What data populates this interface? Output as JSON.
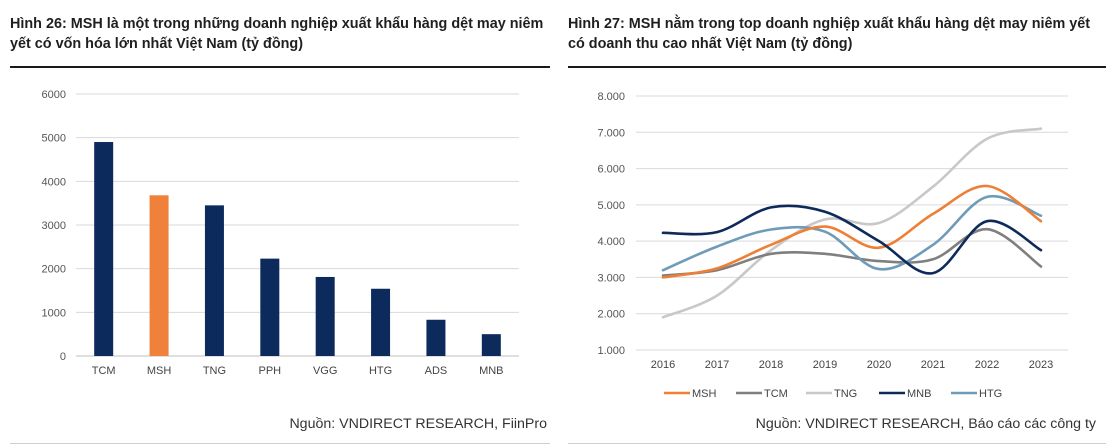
{
  "left": {
    "title": "Hình 26: MSH là một trong những doanh nghiệp xuất khẩu hàng dệt may niêm yết có vốn hóa lớn nhất Việt Nam (tỷ đồng)",
    "source": "Nguồn: VNDIRECT RESEARCH, FiinPro"
  },
  "right": {
    "title": "Hình 27: MSH nằm trong top doanh nghiệp xuất khẩu hàng dệt may niêm yết có doanh thu cao nhất Việt Nam (tỷ đồng)",
    "source": "Nguồn: VNDIRECT RESEARCH, Báo cáo các công ty"
  },
  "chart_data": [
    {
      "type": "bar",
      "categories": [
        "TCM",
        "MSH",
        "TNG",
        "PPH",
        "VGG",
        "HTG",
        "ADS",
        "MNB"
      ],
      "values": [
        4900,
        3680,
        3450,
        2230,
        1810,
        1540,
        830,
        500
      ],
      "bar_colors": [
        "#0d2a5c",
        "#f0813a",
        "#0d2a5c",
        "#0d2a5c",
        "#0d2a5c",
        "#0d2a5c",
        "#0d2a5c",
        "#0d2a5c"
      ],
      "yticks": [
        "0",
        "1000",
        "2000",
        "3000",
        "4000",
        "5000",
        "6000"
      ],
      "ylim": [
        0,
        6000
      ],
      "grid": true
    },
    {
      "type": "line",
      "x": [
        "2016",
        "2017",
        "2018",
        "2019",
        "2020",
        "2021",
        "2022",
        "2023"
      ],
      "yticks": [
        "1.000",
        "2.000",
        "3.000",
        "4.000",
        "5.000",
        "6.000",
        "7.000",
        "8.000"
      ],
      "ylim": [
        1000,
        8000
      ],
      "grid": true,
      "legend_position": "bottom",
      "series": [
        {
          "name": "MSH",
          "color": "#ee7f35",
          "values": [
            3000,
            3250,
            3900,
            4400,
            3820,
            4750,
            5520,
            4550
          ]
        },
        {
          "name": "TCM",
          "color": "#7f7f7f",
          "values": [
            3050,
            3200,
            3650,
            3650,
            3450,
            3500,
            4330,
            3300
          ]
        },
        {
          "name": "TNG",
          "color": "#c8c8c8",
          "values": [
            1900,
            2500,
            3750,
            4600,
            4500,
            5500,
            6820,
            7100
          ]
        },
        {
          "name": "MNB",
          "color": "#0e2a5a",
          "values": [
            4230,
            4250,
            4930,
            4810,
            4000,
            3120,
            4550,
            3750
          ]
        },
        {
          "name": "HTG",
          "color": "#6f9bb8",
          "values": [
            3200,
            3850,
            4320,
            4260,
            3230,
            3900,
            5220,
            4700
          ]
        }
      ]
    }
  ]
}
